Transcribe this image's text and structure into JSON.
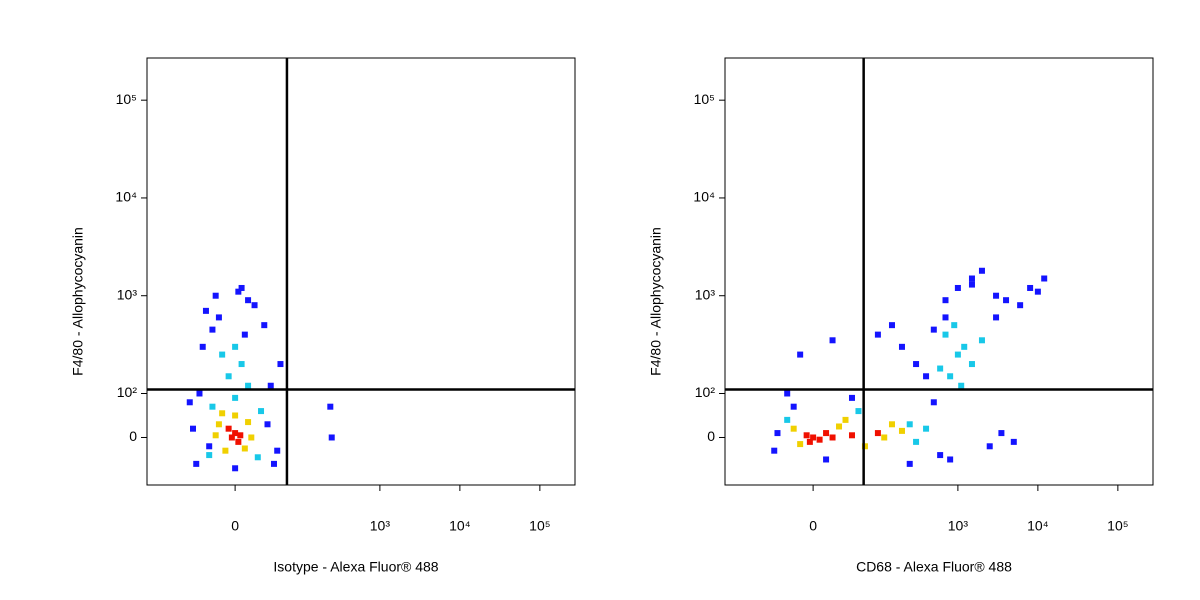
{
  "chart_data": [
    {
      "type": "scatter",
      "x_label": "Isotype - Alexa Fluor® 488",
      "y_label": "F4/80 - Allophycocyanin",
      "xlim": [
        -136,
        275000
      ],
      "ylim": [
        -108,
        270000
      ],
      "xticks": [
        0,
        {
          "value": 1000,
          "label": "10³"
        },
        {
          "value": 10000,
          "label": "10⁴"
        },
        {
          "value": 100000,
          "label": "10⁵"
        }
      ],
      "yticks": [
        0,
        {
          "value": 100,
          "label": "10²"
        },
        {
          "value": 1000,
          "label": "10³"
        },
        {
          "value": 10000,
          "label": "10⁴"
        },
        {
          "value": 100000,
          "label": "10⁵"
        }
      ],
      "gates": {
        "x": 80,
        "y": 110
      },
      "series": [
        {
          "color": "#1414ff",
          "x": [
            -60,
            60,
            -55,
            55,
            -50,
            45,
            -45,
            30,
            -30,
            70,
            -70,
            10,
            20,
            -25,
            15,
            0,
            -40,
            50,
            65,
            -65,
            240,
            250,
            -35,
            5
          ],
          "values": [
            -60,
            -60,
            100,
            120,
            300,
            500,
            700,
            800,
            1000,
            200,
            80,
            1200,
            900,
            600,
            400,
            -70,
            -20,
            30,
            -30,
            20,
            70,
            0,
            450,
            1100
          ]
        },
        {
          "color": "#18c8e8",
          "x": [
            -40,
            35,
            -35,
            40,
            -10,
            10,
            0,
            -20,
            20,
            0
          ],
          "values": [
            -40,
            -45,
            70,
            60,
            150,
            200,
            300,
            250,
            120,
            90
          ]
        },
        {
          "color": "#f0d000",
          "x": [
            -25,
            20,
            -15,
            15,
            -30,
            25,
            0,
            -20
          ],
          "values": [
            30,
            35,
            -30,
            -25,
            5,
            0,
            50,
            55
          ]
        },
        {
          "color": "#f01000",
          "x": [
            -5,
            0,
            5,
            -10,
            8
          ],
          "values": [
            0,
            10,
            -10,
            20,
            5
          ]
        }
      ]
    },
    {
      "type": "scatter",
      "x_label": "CD68 - Alexa Fluor® 488",
      "y_label": "F4/80 - Allophycocyanin",
      "xlim": [
        -136,
        275000
      ],
      "ylim": [
        -108,
        270000
      ],
      "xticks": [
        0,
        {
          "value": 1000,
          "label": "10³"
        },
        {
          "value": 10000,
          "label": "10⁴"
        },
        {
          "value": 100000,
          "label": "10⁵"
        }
      ],
      "yticks": [
        0,
        {
          "value": 100,
          "label": "10²"
        },
        {
          "value": 1000,
          "label": "10³"
        },
        {
          "value": 10000,
          "label": "10⁴"
        },
        {
          "value": 100000,
          "label": "10⁵"
        }
      ],
      "gates": {
        "x": 78,
        "y": 110
      },
      "series": [
        {
          "color": "#1414ff",
          "x": [
            -60,
            -55,
            -40,
            -20,
            30,
            100,
            150,
            200,
            300,
            400,
            500,
            700,
            1000,
            1500,
            2000,
            3000,
            4000,
            6000,
            8000,
            10000,
            12000,
            2500,
            3500,
            5000,
            800,
            600,
            250,
            -30,
            20,
            60,
            500,
            1500,
            3000,
            700
          ],
          "values": [
            -30,
            10,
            100,
            250,
            350,
            400,
            500,
            300,
            200,
            150,
            450,
            900,
            1200,
            1500,
            1800,
            1000,
            900,
            800,
            1200,
            1100,
            1500,
            -20,
            10,
            -10,
            -50,
            -40,
            -60,
            70,
            -50,
            90,
            80,
            1300,
            600,
            600
          ]
        },
        {
          "color": "#18c8e8",
          "x": [
            -40,
            70,
            250,
            300,
            400,
            800,
            1000,
            1200,
            1500,
            700,
            900,
            2000,
            600,
            1100
          ],
          "values": [
            40,
            60,
            30,
            -10,
            20,
            150,
            250,
            300,
            200,
            400,
            500,
            350,
            180,
            120
          ]
        },
        {
          "color": "#f0d000",
          "x": [
            -30,
            40,
            80,
            150,
            120,
            50,
            -20,
            200
          ],
          "values": [
            20,
            25,
            -20,
            30,
            0,
            40,
            -15,
            15
          ]
        },
        {
          "color": "#f01000",
          "x": [
            0,
            -10,
            10,
            20,
            30,
            60,
            100,
            -5
          ],
          "values": [
            0,
            5,
            -5,
            10,
            0,
            5,
            10,
            -10
          ]
        }
      ]
    }
  ]
}
